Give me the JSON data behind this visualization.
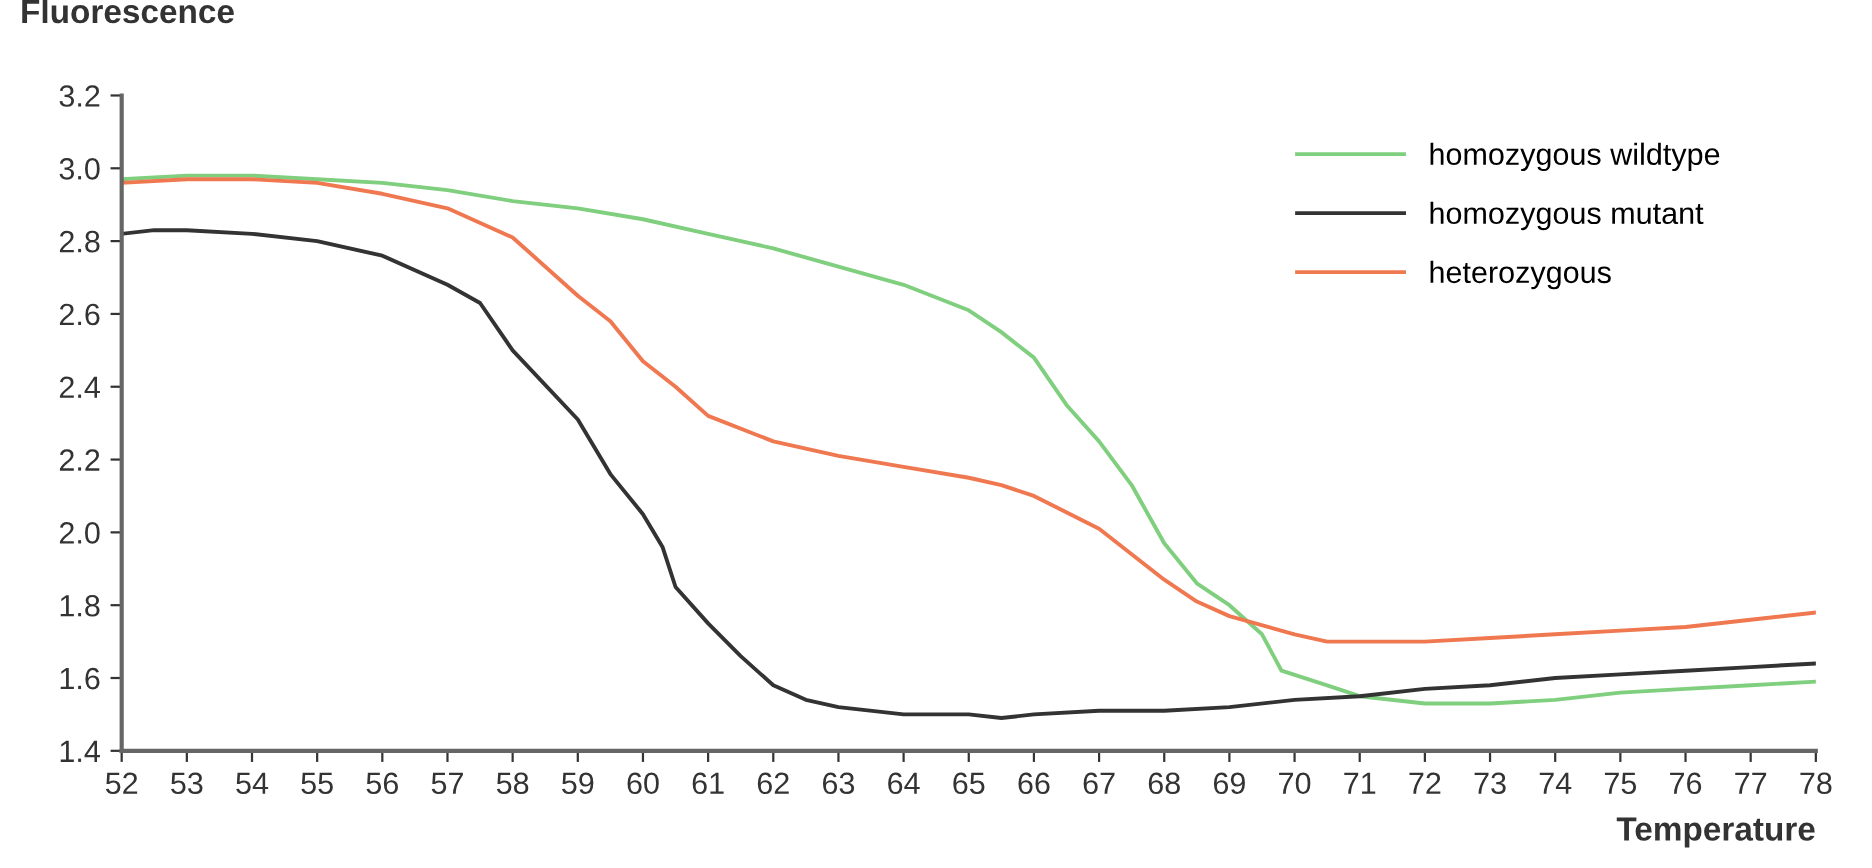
{
  "chart_data": {
    "type": "line",
    "xlabel": "Temperature",
    "ylabel": "Fluorescence",
    "xlim": [
      52,
      78
    ],
    "ylim": [
      1.4,
      3.2
    ],
    "xticks": [
      52,
      53,
      54,
      55,
      56,
      57,
      58,
      59,
      60,
      61,
      62,
      63,
      64,
      65,
      66,
      67,
      68,
      69,
      70,
      71,
      72,
      73,
      74,
      75,
      76,
      77,
      78
    ],
    "yticks": [
      {
        "value": 1.4,
        "label": "1.4"
      },
      {
        "value": 1.6,
        "label": "1.6"
      },
      {
        "value": 1.8,
        "label": "1.8"
      },
      {
        "value": 2.0,
        "label": "2.0"
      },
      {
        "value": 2.2,
        "label": "2.2"
      },
      {
        "value": 2.4,
        "label": "2.4"
      },
      {
        "value": 2.6,
        "label": "2.6"
      },
      {
        "value": 2.8,
        "label": "2.8"
      },
      {
        "value": 3.0,
        "label": "3.0"
      },
      {
        "value": 3.2,
        "label": "3.2"
      }
    ],
    "grid": false,
    "legend": "top right",
    "marker": "none",
    "line_style": "solid",
    "series": [
      {
        "name": "homozygous wildtype",
        "color": "#7fcf7f",
        "x": [
          52,
          53,
          54,
          55,
          56,
          57,
          58,
          59,
          60,
          61,
          62,
          63,
          64,
          65,
          65.5,
          66,
          66.5,
          67,
          67.5,
          68,
          68.5,
          69,
          69.5,
          69.8,
          70.5,
          71,
          72,
          73,
          74,
          75,
          76,
          77,
          78
        ],
        "values": [
          2.97,
          2.98,
          2.98,
          2.97,
          2.96,
          2.94,
          2.91,
          2.89,
          2.86,
          2.82,
          2.78,
          2.73,
          2.68,
          2.61,
          2.55,
          2.48,
          2.35,
          2.25,
          2.13,
          1.97,
          1.86,
          1.8,
          1.72,
          1.62,
          1.58,
          1.55,
          1.53,
          1.53,
          1.54,
          1.56,
          1.57,
          1.58,
          1.59
        ]
      },
      {
        "name": "homozygous mutant",
        "color": "#333333",
        "x": [
          52,
          52.5,
          53,
          54,
          55,
          56,
          57,
          57.5,
          58,
          59,
          59.5,
          60,
          60.3,
          60.5,
          61,
          61.5,
          62,
          62.5,
          63,
          64,
          65,
          65.5,
          66,
          67,
          68,
          69,
          70,
          71,
          72,
          73,
          74,
          75,
          76,
          77,
          78
        ],
        "values": [
          2.82,
          2.83,
          2.83,
          2.82,
          2.8,
          2.76,
          2.68,
          2.63,
          2.5,
          2.31,
          2.16,
          2.05,
          1.96,
          1.85,
          1.75,
          1.66,
          1.58,
          1.54,
          1.52,
          1.5,
          1.5,
          1.49,
          1.5,
          1.51,
          1.51,
          1.52,
          1.54,
          1.55,
          1.57,
          1.58,
          1.6,
          1.61,
          1.62,
          1.63,
          1.64
        ]
      },
      {
        "name": "heterozygous",
        "color": "#f07850",
        "x": [
          52,
          53,
          54,
          55,
          56,
          57,
          58,
          59,
          59.5,
          60,
          60.5,
          61,
          62,
          63,
          64,
          65,
          65.5,
          66,
          67,
          68,
          68.5,
          69,
          70,
          70.5,
          71,
          72,
          73,
          74,
          75,
          76,
          77,
          78
        ],
        "values": [
          2.96,
          2.97,
          2.97,
          2.96,
          2.93,
          2.89,
          2.81,
          2.65,
          2.58,
          2.47,
          2.4,
          2.32,
          2.25,
          2.21,
          2.18,
          2.15,
          2.13,
          2.1,
          2.01,
          1.87,
          1.81,
          1.77,
          1.72,
          1.7,
          1.7,
          1.7,
          1.71,
          1.72,
          1.73,
          1.74,
          1.76,
          1.78
        ]
      }
    ]
  }
}
